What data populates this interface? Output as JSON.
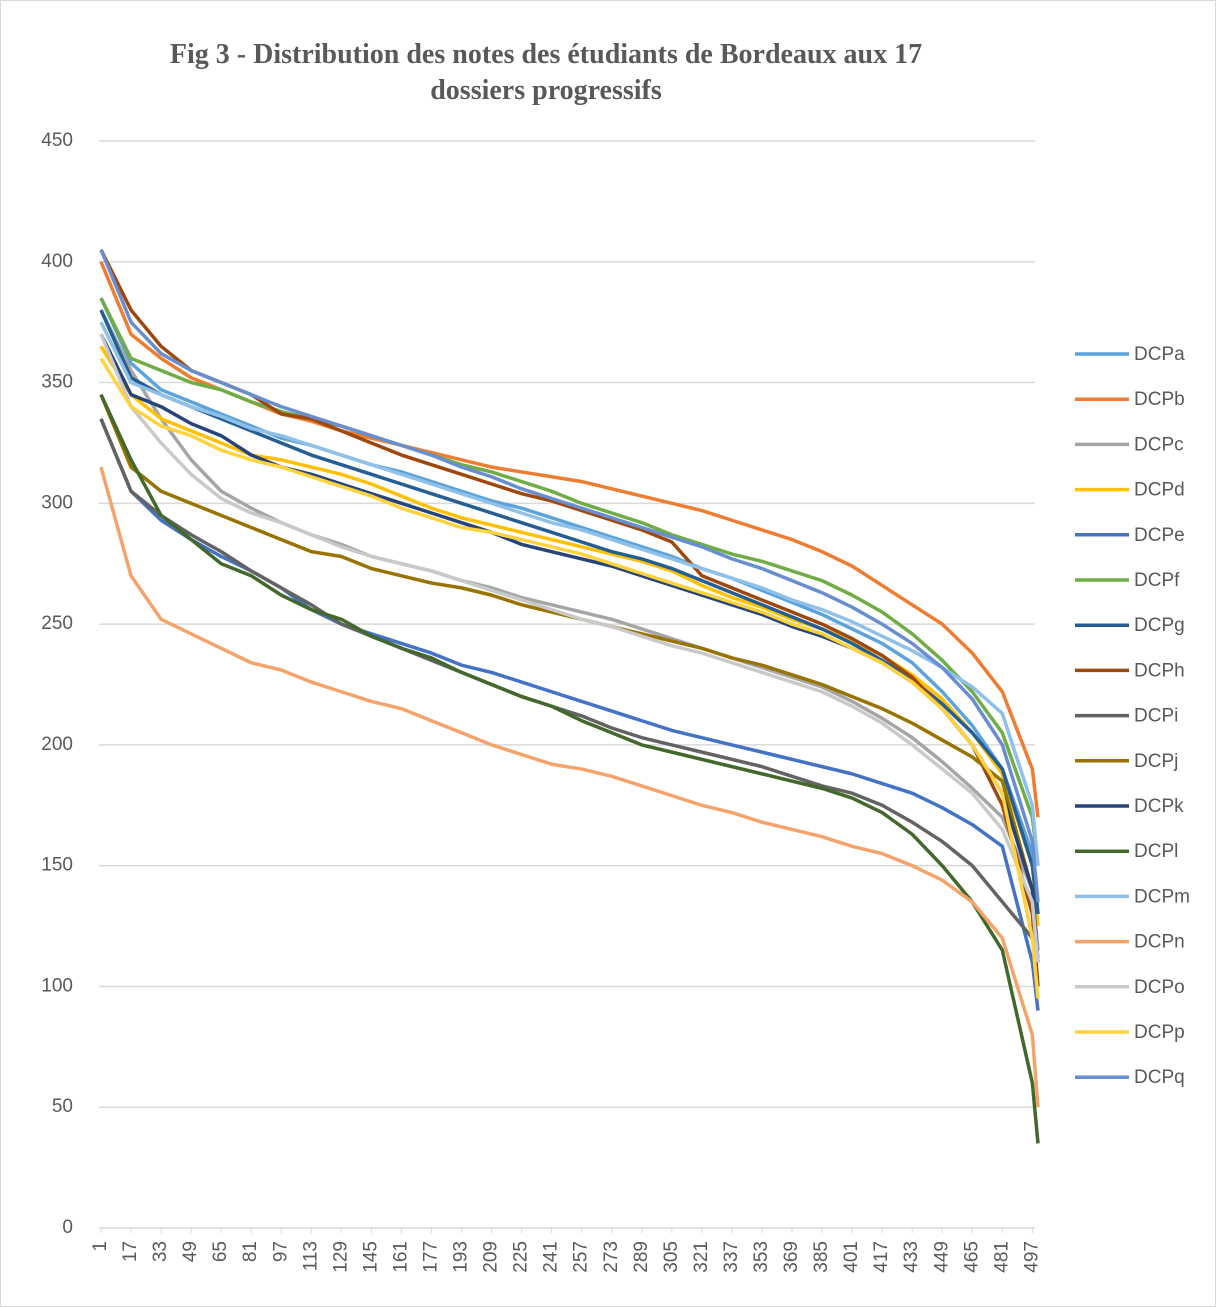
{
  "chart_data": {
    "type": "line",
    "title": "Fig 3 - Distribution des notes des étudiants de Bordeaux aux 17 dossiers progressifs",
    "x": [
      1,
      17,
      33,
      49,
      65,
      81,
      97,
      113,
      129,
      145,
      161,
      177,
      193,
      209,
      225,
      241,
      257,
      273,
      289,
      305,
      321,
      337,
      353,
      369,
      385,
      401,
      417,
      433,
      449,
      465,
      481,
      497,
      500
    ],
    "xlim": [
      1,
      500
    ],
    "xticks": [
      1,
      17,
      33,
      49,
      65,
      81,
      97,
      113,
      129,
      145,
      161,
      177,
      193,
      209,
      225,
      241,
      257,
      273,
      289,
      305,
      321,
      337,
      353,
      369,
      385,
      401,
      417,
      433,
      449,
      465,
      481,
      497
    ],
    "ylim": [
      0,
      450
    ],
    "yticks": [
      0,
      50,
      100,
      150,
      200,
      250,
      300,
      350,
      400,
      450
    ],
    "grid": true,
    "legend": "right",
    "series": [
      {
        "name": "DCPa",
        "color": "#5ba3dc",
        "values": [
          385,
          358,
          347,
          342,
          337,
          332,
          327,
          324,
          320,
          316,
          313,
          309,
          305,
          301,
          298,
          294,
          290,
          286,
          282,
          278,
          273,
          269,
          264,
          259,
          254,
          248,
          242,
          234,
          222,
          208,
          190,
          155,
          130
        ]
      },
      {
        "name": "DCPb",
        "color": "#ed7d31",
        "values": [
          400,
          370,
          360,
          352,
          347,
          342,
          337,
          334,
          330,
          327,
          324,
          321,
          318,
          315,
          313,
          311,
          309,
          306,
          303,
          300,
          297,
          293,
          289,
          285,
          280,
          274,
          266,
          258,
          250,
          238,
          222,
          190,
          170
        ]
      },
      {
        "name": "DCPc",
        "color": "#a5a5a5",
        "values": [
          380,
          355,
          335,
          318,
          305,
          298,
          292,
          287,
          283,
          278,
          275,
          272,
          268,
          265,
          261,
          258,
          255,
          252,
          248,
          244,
          240,
          236,
          232,
          228,
          224,
          218,
          211,
          203,
          193,
          182,
          170,
          140,
          115
        ]
      },
      {
        "name": "DCPd",
        "color": "#ffc000",
        "values": [
          365,
          345,
          335,
          330,
          325,
          320,
          318,
          315,
          312,
          308,
          303,
          298,
          294,
          291,
          288,
          285,
          282,
          279,
          276,
          272,
          266,
          261,
          257,
          252,
          248,
          243,
          237,
          229,
          219,
          205,
          188,
          150,
          125
        ]
      },
      {
        "name": "DCPe",
        "color": "#4472c4",
        "values": [
          335,
          305,
          293,
          285,
          278,
          272,
          265,
          256,
          250,
          246,
          242,
          238,
          233,
          230,
          226,
          222,
          218,
          214,
          210,
          206,
          203,
          200,
          197,
          194,
          191,
          188,
          184,
          180,
          174,
          167,
          158,
          110,
          90
        ]
      },
      {
        "name": "DCPf",
        "color": "#70ad47",
        "values": [
          385,
          360,
          355,
          350,
          347,
          342,
          338,
          335,
          332,
          328,
          324,
          320,
          316,
          313,
          309,
          305,
          300,
          296,
          292,
          287,
          283,
          279,
          276,
          272,
          268,
          262,
          255,
          246,
          235,
          222,
          205,
          170,
          150
        ]
      },
      {
        "name": "DCPg",
        "color": "#255e91",
        "values": [
          380,
          352,
          345,
          340,
          335,
          330,
          325,
          320,
          316,
          312,
          308,
          304,
          300,
          296,
          292,
          288,
          284,
          280,
          277,
          273,
          268,
          263,
          258,
          253,
          248,
          242,
          235,
          227,
          217,
          205,
          190,
          150,
          130
        ]
      },
      {
        "name": "DCPh",
        "color": "#9e480e",
        "values": [
          405,
          380,
          365,
          355,
          350,
          345,
          337,
          335,
          330,
          325,
          320,
          316,
          312,
          308,
          304,
          301,
          297,
          293,
          289,
          284,
          270,
          265,
          260,
          255,
          250,
          244,
          237,
          228,
          215,
          200,
          175,
          130,
          100
        ]
      },
      {
        "name": "DCPi",
        "color": "#636363",
        "values": [
          335,
          305,
          295,
          287,
          280,
          272,
          265,
          258,
          250,
          245,
          240,
          235,
          230,
          225,
          220,
          216,
          212,
          207,
          203,
          200,
          197,
          194,
          191,
          187,
          183,
          180,
          175,
          168,
          160,
          150,
          135,
          120,
          110
        ]
      },
      {
        "name": "DCPj",
        "color": "#997300",
        "values": [
          345,
          315,
          305,
          300,
          295,
          290,
          285,
          280,
          278,
          273,
          270,
          267,
          265,
          262,
          258,
          255,
          252,
          249,
          246,
          243,
          240,
          236,
          233,
          229,
          225,
          220,
          215,
          209,
          202,
          195,
          185,
          140,
          110
        ]
      },
      {
        "name": "DCPk",
        "color": "#264478",
        "values": [
          370,
          345,
          340,
          333,
          328,
          320,
          315,
          312,
          308,
          304,
          300,
          296,
          292,
          288,
          283,
          280,
          277,
          274,
          270,
          266,
          262,
          258,
          254,
          249,
          245,
          240,
          234,
          226,
          215,
          200,
          180,
          140,
          110
        ]
      },
      {
        "name": "DCPl",
        "color": "#43682b",
        "values": [
          345,
          318,
          295,
          285,
          275,
          270,
          262,
          256,
          252,
          245,
          240,
          236,
          230,
          225,
          220,
          216,
          210,
          205,
          200,
          197,
          194,
          191,
          188,
          185,
          182,
          178,
          172,
          163,
          150,
          135,
          115,
          60,
          35
        ]
      },
      {
        "name": "DCPm",
        "color": "#8fc0e8",
        "values": [
          375,
          350,
          345,
          340,
          336,
          331,
          328,
          324,
          320,
          316,
          312,
          308,
          304,
          300,
          296,
          292,
          289,
          285,
          281,
          277,
          273,
          269,
          265,
          260,
          256,
          251,
          245,
          239,
          232,
          224,
          213,
          175,
          150
        ]
      },
      {
        "name": "DCPn",
        "color": "#f4a36b",
        "values": [
          315,
          270,
          252,
          246,
          240,
          234,
          231,
          226,
          222,
          218,
          215,
          210,
          205,
          200,
          196,
          192,
          190,
          187,
          183,
          179,
          175,
          172,
          168,
          165,
          162,
          158,
          155,
          150,
          144,
          135,
          120,
          80,
          50
        ]
      },
      {
        "name": "DCPo",
        "color": "#c9c9c9",
        "values": [
          370,
          340,
          325,
          312,
          302,
          296,
          292,
          287,
          282,
          278,
          275,
          272,
          268,
          264,
          260,
          256,
          252,
          249,
          245,
          241,
          238,
          234,
          230,
          226,
          222,
          216,
          209,
          200,
          190,
          180,
          165,
          135,
          110
        ]
      },
      {
        "name": "DCPp",
        "color": "#ffd33d",
        "values": [
          360,
          340,
          332,
          328,
          322,
          318,
          315,
          311,
          307,
          303,
          298,
          294,
          290,
          288,
          285,
          282,
          279,
          275,
          271,
          267,
          263,
          259,
          255,
          250,
          246,
          240,
          234,
          226,
          215,
          200,
          180,
          120,
          95
        ]
      },
      {
        "name": "DCPq",
        "color": "#698ed0",
        "values": [
          405,
          375,
          362,
          355,
          350,
          345,
          340,
          336,
          332,
          328,
          324,
          320,
          315,
          311,
          306,
          302,
          298,
          294,
          290,
          286,
          282,
          277,
          273,
          268,
          263,
          257,
          250,
          242,
          232,
          219,
          200,
          160,
          135
        ]
      }
    ]
  }
}
